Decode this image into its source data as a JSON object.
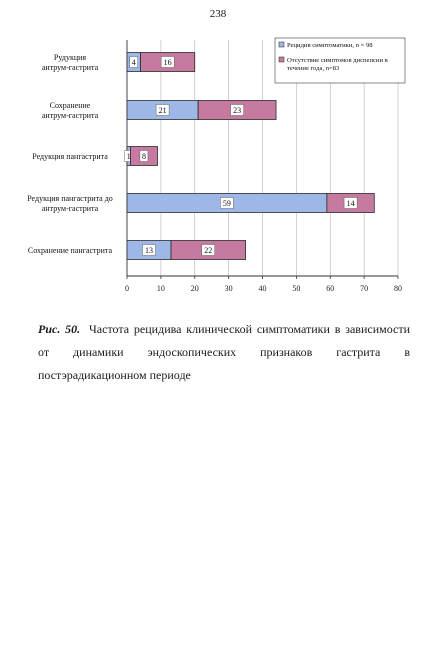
{
  "page": {
    "number": "238"
  },
  "caption": {
    "label": "Рис. 50.",
    "text": "Частота рецидива клинической симптоматики в зависимости от динамики эндоскопических признаков гастрита в постэрадикационном периоде"
  },
  "chart_data": {
    "type": "bar",
    "orientation": "horizontal",
    "stacked": true,
    "categories": [
      "Рудукция антрум-гастрита",
      "Сохранение антрум-гастрита",
      "Редукция пангастрита",
      "Редукция пангастрита до антрум-гастрита",
      "Сохранение пангастрита"
    ],
    "series": [
      {
        "name": "Рецидив симптоматики, n = 98",
        "values": [
          4,
          21,
          1,
          59,
          13
        ],
        "color": "#9db8e6"
      },
      {
        "name": "Отсутствие симптомов диспепсии в течение года, n=83",
        "values": [
          16,
          23,
          8,
          14,
          22
        ],
        "color": "#c77a9f"
      }
    ],
    "xlim": [
      0,
      80
    ],
    "xticks": [
      0,
      10,
      20,
      30,
      40,
      50,
      60,
      70,
      80
    ],
    "grid": true,
    "legend": "top-right"
  }
}
